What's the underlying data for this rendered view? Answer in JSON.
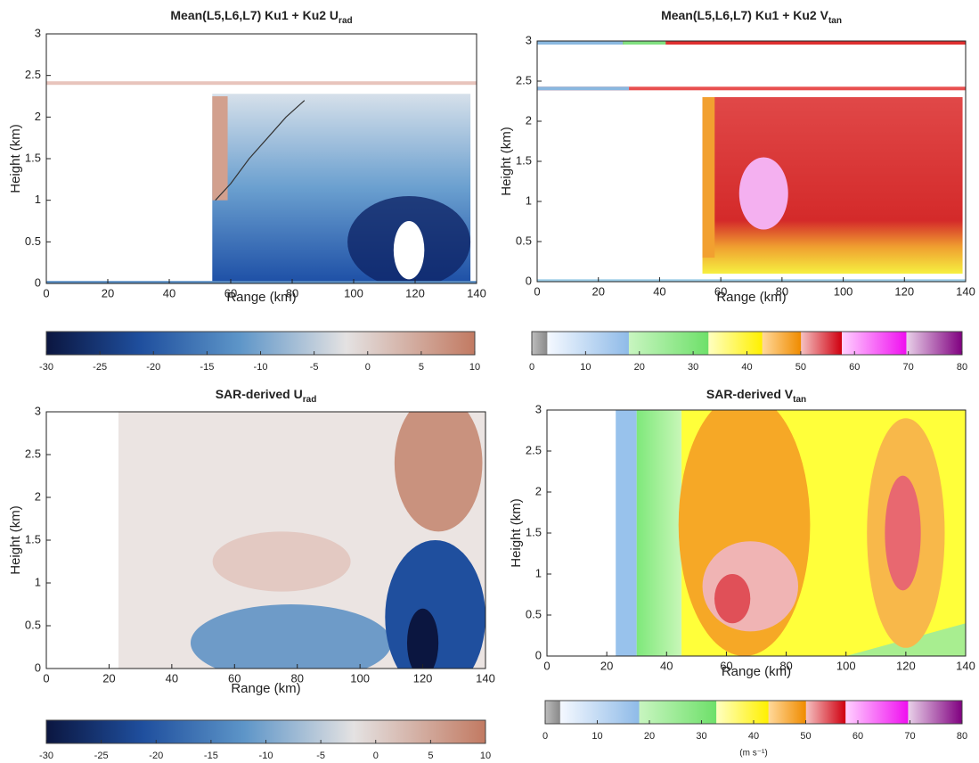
{
  "chart_data": [
    {
      "type": "heatmap",
      "title": "Mean(L5,L6,L7) Ku1 + Ku2  U",
      "title_sub": "rad",
      "xlabel": "Range (km)",
      "ylabel": "Height (km)",
      "xlim": [
        0,
        140
      ],
      "ylim": [
        0,
        3
      ],
      "xticks": [
        0,
        20,
        40,
        60,
        80,
        100,
        120,
        140
      ],
      "yticks": [
        0,
        0.5,
        1,
        1.5,
        2,
        2.5,
        3
      ],
      "colormap": "diverging",
      "colorbar": {
        "clim": [
          -30,
          10
        ],
        "ticks": [
          -30,
          -25,
          -20,
          -15,
          -10,
          -5,
          0,
          5,
          10
        ]
      }
    },
    {
      "type": "heatmap",
      "title": "Mean(L5,L6,L7) Ku1 + Ku2  V",
      "title_sub": "tan",
      "xlabel": "Range (km)",
      "ylabel": "Height (km)",
      "xlim": [
        0,
        140
      ],
      "ylim": [
        0,
        3
      ],
      "xticks": [
        0,
        20,
        40,
        60,
        80,
        100,
        120,
        140
      ],
      "yticks": [
        0,
        0.5,
        1,
        1.5,
        2,
        2.5,
        3
      ],
      "colormap": "stepped",
      "colorbar": {
        "clim": [
          0,
          80
        ],
        "ticks": [
          0,
          10,
          20,
          30,
          40,
          50,
          60,
          70,
          80
        ]
      }
    },
    {
      "type": "heatmap",
      "title": "SAR-derived U",
      "title_sub": "rad",
      "xlabel": "Range (km)",
      "ylabel": "Height (km)",
      "xlim": [
        0,
        140
      ],
      "ylim": [
        0,
        3
      ],
      "xticks": [
        0,
        20,
        40,
        60,
        80,
        100,
        120,
        140
      ],
      "yticks": [
        0,
        0.5,
        1,
        1.5,
        2,
        2.5,
        3
      ],
      "colormap": "diverging",
      "colorbar": {
        "clim": [
          -30,
          10
        ],
        "ticks": [
          -30,
          -25,
          -20,
          -15,
          -10,
          -5,
          0,
          5,
          10
        ]
      }
    },
    {
      "type": "heatmap",
      "title": "SAR-derived V",
      "title_sub": "tan",
      "xlabel": "Range (km)",
      "ylabel": "Height (km)",
      "xlim": [
        0,
        140
      ],
      "ylim": [
        0,
        3
      ],
      "xticks": [
        0,
        20,
        40,
        60,
        80,
        100,
        120,
        140
      ],
      "yticks": [
        0,
        0.5,
        1,
        1.5,
        2,
        2.5,
        3
      ],
      "colormap": "stepped",
      "colorbar": {
        "clim": [
          0,
          80
        ],
        "ticks": [
          0,
          10,
          20,
          30,
          40,
          50,
          60,
          70,
          80
        ],
        "label": "(m s⁻¹)"
      }
    }
  ]
}
